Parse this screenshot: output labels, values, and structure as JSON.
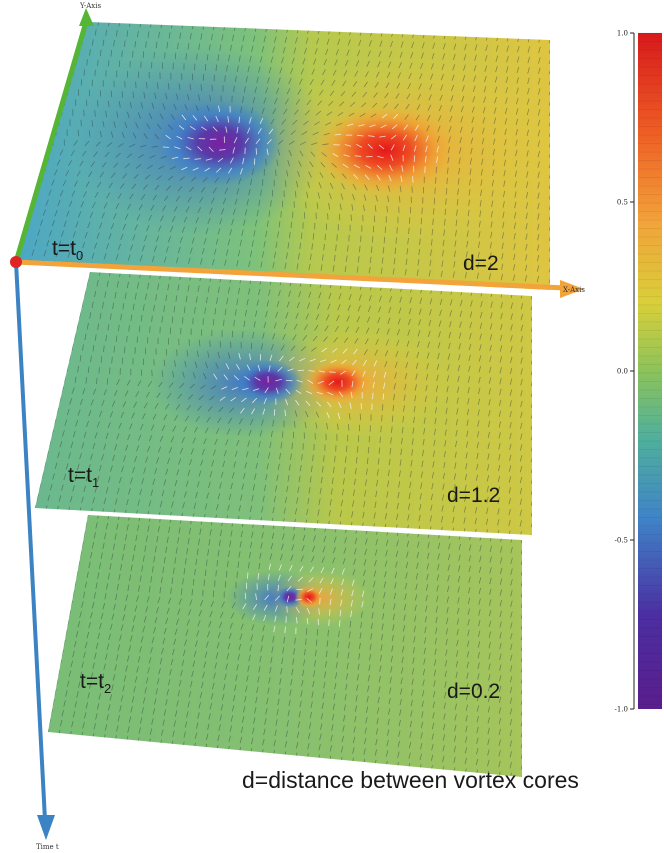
{
  "axes": {
    "y_axis_label": "Y-Axis",
    "x_axis_label": "X-Axis",
    "time_axis_label": "Time t",
    "axis_colors": {
      "y": "#55b534",
      "x": "#f2a33a",
      "time": "#3b83c2",
      "origin": "#e02424"
    }
  },
  "slices": [
    {
      "label_main": "t=t",
      "label_sub": "0",
      "distance": "d=2"
    },
    {
      "label_main": "t=t",
      "label_sub": "1",
      "distance": "d=1.2"
    },
    {
      "label_main": "t=t",
      "label_sub": "2",
      "distance": "d=0.2"
    }
  ],
  "colorbar": {
    "ticks": [
      "1.0",
      "0.5",
      "0.0",
      "-0.5",
      "-1.0"
    ],
    "colors": [
      "#d7191c",
      "#f08a2c",
      "#ecd43a",
      "#8cc35a",
      "#4fb09c",
      "#3f83c8",
      "#4b2fa2",
      "#5a1d8c"
    ]
  },
  "caption": "d=distance between vortex cores"
}
